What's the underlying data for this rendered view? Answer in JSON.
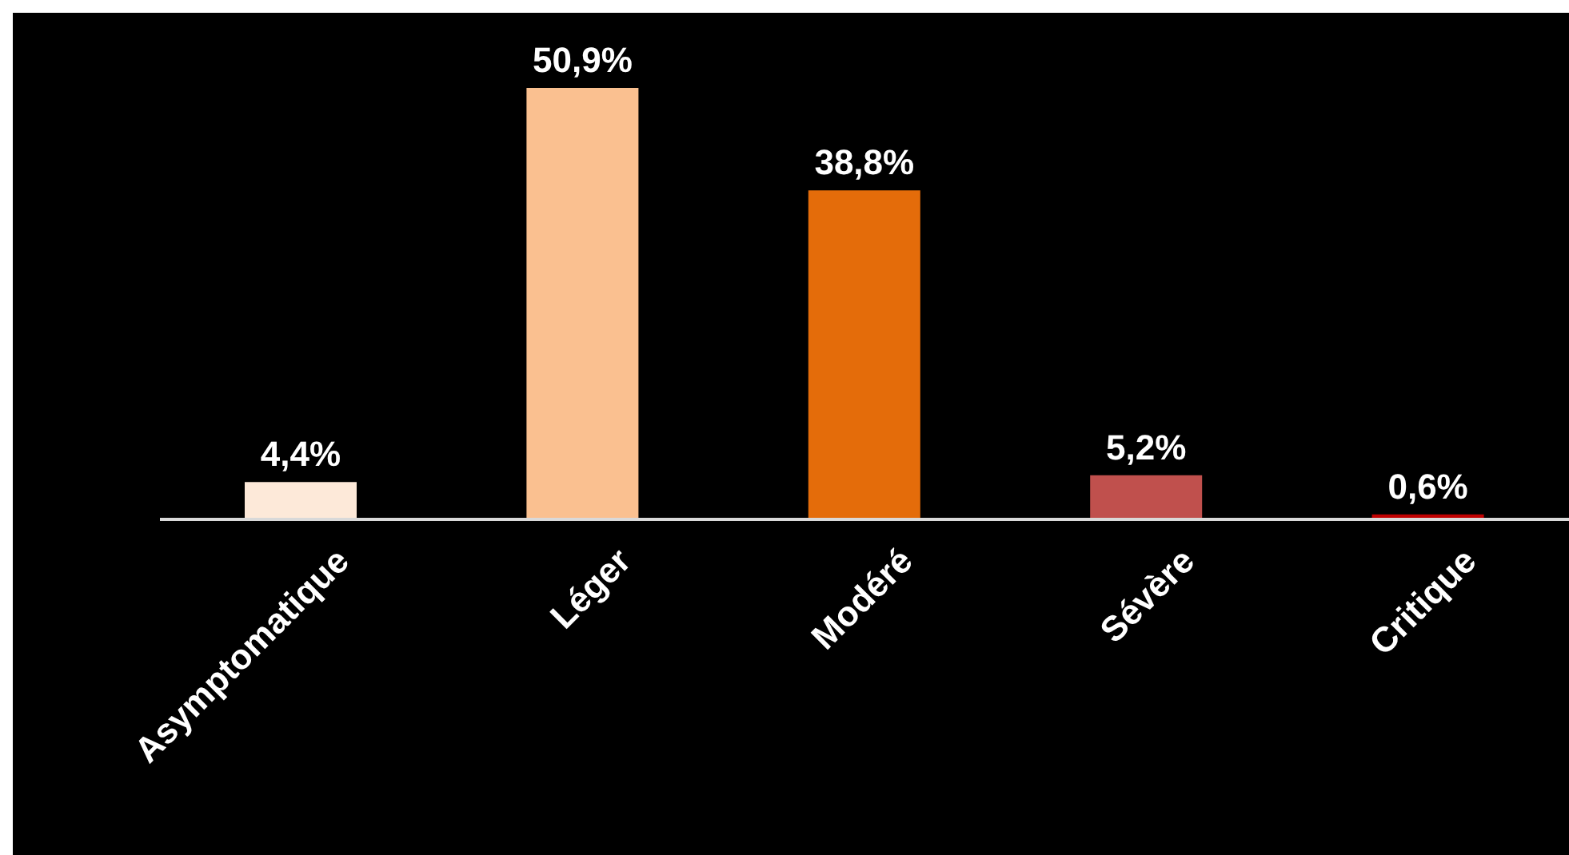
{
  "chart_data": {
    "type": "bar",
    "categories": [
      "Asymptomatique",
      "Léger",
      "Modéré",
      "Sévère",
      "Critique"
    ],
    "values": [
      4.4,
      50.9,
      38.8,
      5.2,
      0.6
    ],
    "colors": [
      "#fde9d9",
      "#fac090",
      "#e46c0a",
      "#c0504d",
      "#c00000"
    ],
    "value_labels": [
      "4,4%",
      "50,9%",
      "38,8%",
      "5,2%",
      "0,6%"
    ],
    "tick_labels": "x",
    "grid": false,
    "legend": false
  }
}
